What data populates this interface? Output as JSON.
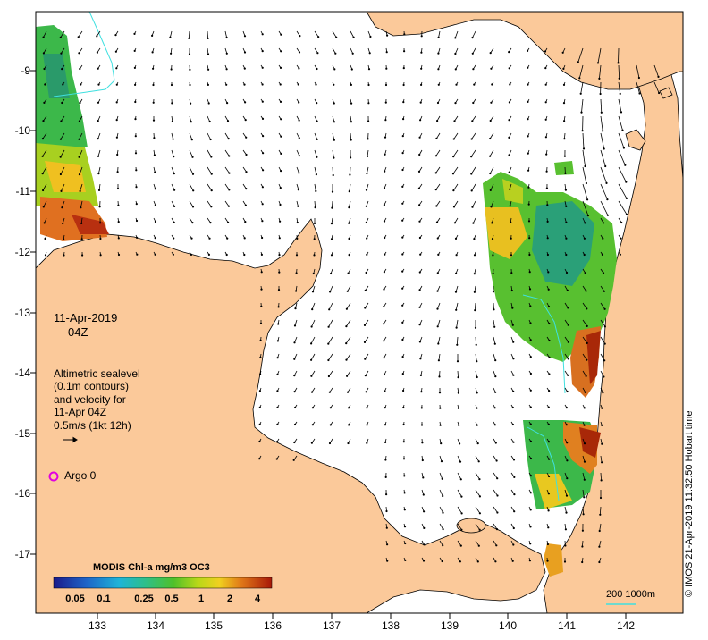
{
  "map": {
    "date": "11-Apr-2019",
    "time": "04Z",
    "legend_lines": [
      "Altimetric sealevel",
      "(0.1m contours)",
      "and velocity for",
      "11-Apr 04Z",
      "0.5m/s (1kt 12h)"
    ],
    "argo_label": "Argo 0",
    "colorbar_title": "MODIS Chl-a mg/m3 OC3",
    "colorbar_ticks": [
      "0.05",
      "0.1",
      "0.25",
      "0.5",
      "1",
      "2",
      "4"
    ],
    "scale_label": "200  1000m",
    "credit": "© IMOS 21-Apr-2019 11:32:50 Hobart time",
    "lat_ticks": [
      "-9",
      "-10",
      "-11",
      "-12",
      "-13",
      "-14",
      "-15",
      "-16",
      "-17"
    ],
    "lon_ticks": [
      "133",
      "134",
      "135",
      "136",
      "137",
      "138",
      "139",
      "140",
      "141",
      "142"
    ],
    "colors": {
      "land": "#fbc99a",
      "coast": "#000000",
      "argo": "#e000e0",
      "bathy": "#40e0e0"
    }
  }
}
